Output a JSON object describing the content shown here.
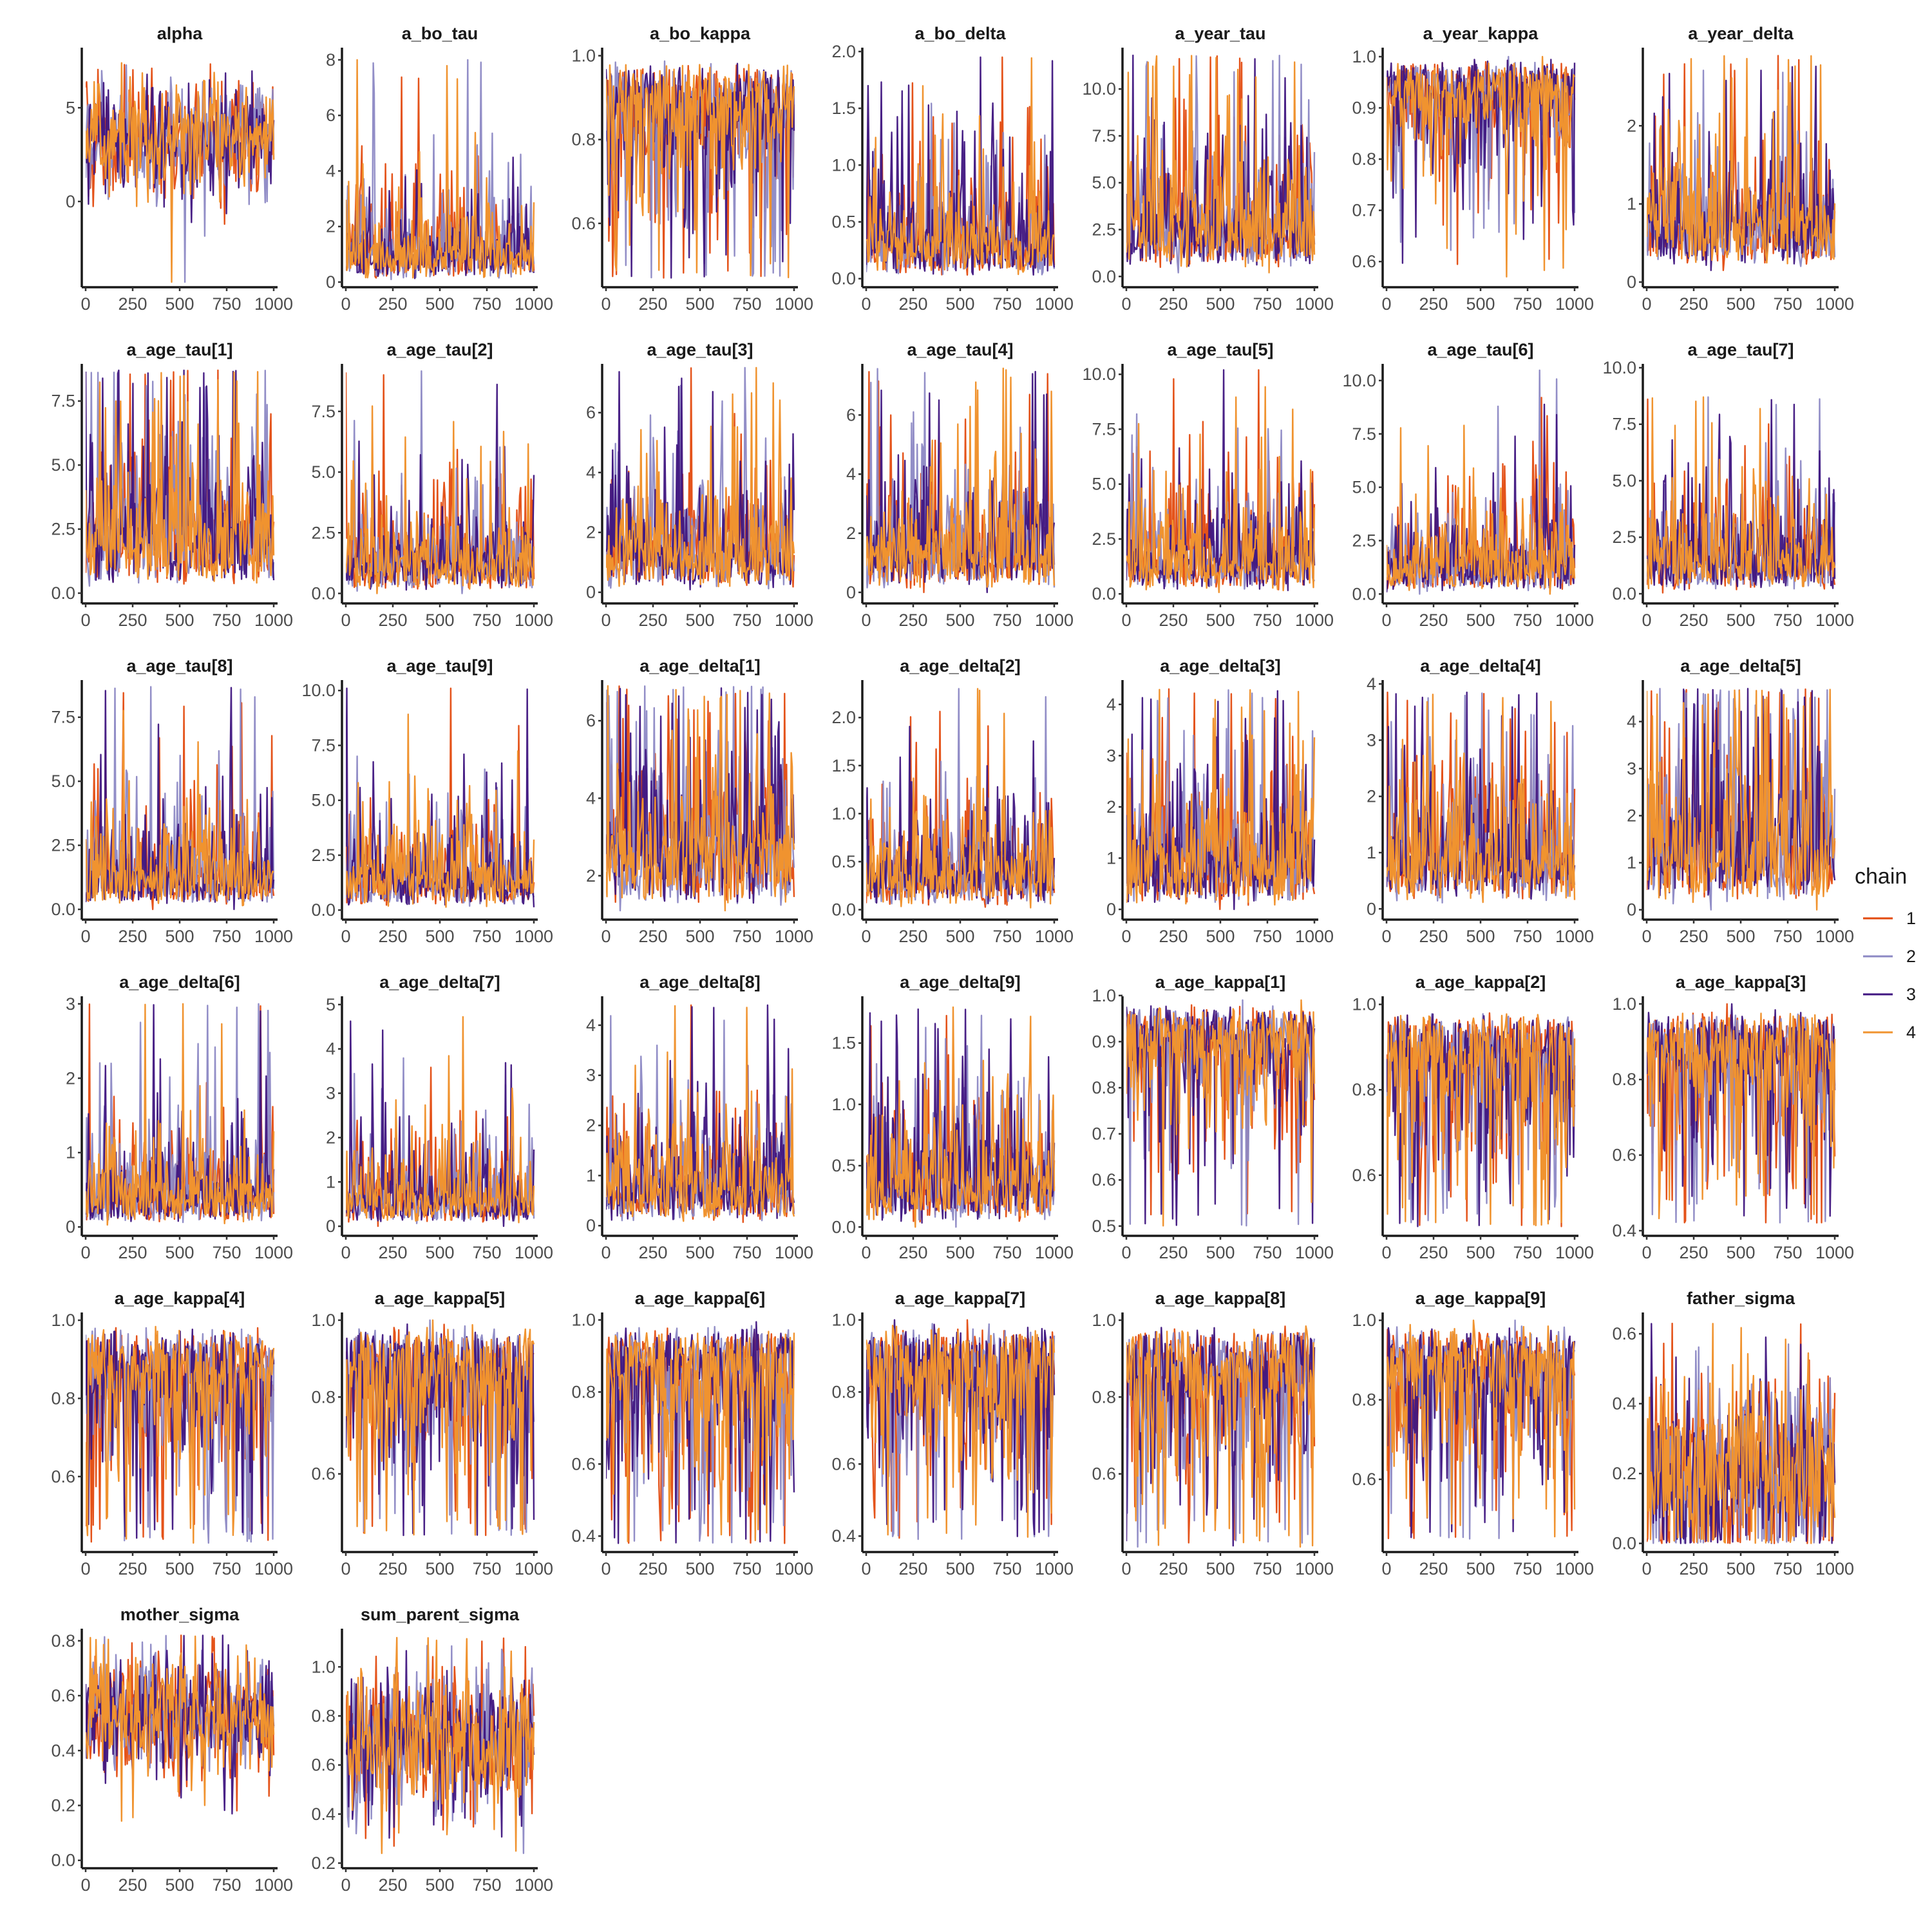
{
  "chart_data": {
    "type": "line",
    "x_ticks": [
      0,
      250,
      500,
      750,
      1000
    ],
    "xlim": [
      0,
      1000
    ],
    "iterations": 1000,
    "grid": false,
    "legend": {
      "title": "chain",
      "placement": "right",
      "items": [
        {
          "label": "1",
          "color": "#E34A0E"
        },
        {
          "label": "2",
          "color": "#8C88C4"
        },
        {
          "label": "3",
          "color": "#3F1580"
        },
        {
          "label": "4",
          "color": "#F0932F"
        }
      ]
    },
    "panels": [
      {
        "title": "alpha",
        "ylim": [
          -4.3,
          8.0
        ],
        "yticks": [
          0,
          5
        ],
        "ytick_labels": [
          "0",
          "5"
        ],
        "range": [
          -4.3,
          8.0
        ],
        "center": 3.2,
        "spread": 1.6,
        "skew": 0.0
      },
      {
        "title": "a_bo_tau",
        "ylim": [
          0,
          8.3
        ],
        "yticks": [
          0,
          2,
          4,
          6,
          8
        ],
        "ytick_labels": [
          "0",
          "2",
          "4",
          "6",
          "8"
        ],
        "range": [
          0.0,
          8.0
        ],
        "center": 1.0,
        "spread": 1.2,
        "skew": 1.0
      },
      {
        "title": "a_bo_kappa",
        "ylim": [
          0.46,
          1.01
        ],
        "yticks": [
          0.6,
          0.8,
          1.0
        ],
        "ytick_labels": [
          "0.6",
          "0.8",
          "1.0"
        ],
        "range": [
          0.47,
          1.0
        ],
        "center": 0.87,
        "spread": 0.08,
        "skew": -1.0
      },
      {
        "title": "a_bo_delta",
        "ylim": [
          -0.03,
          2.0
        ],
        "yticks": [
          0.0,
          0.5,
          1.0,
          1.5,
          2.0
        ],
        "ytick_labels": [
          "0.0",
          "0.5",
          "1.0",
          "1.5",
          "2.0"
        ],
        "range": [
          0.0,
          1.95
        ],
        "center": 0.3,
        "spread": 0.25,
        "skew": 1.0
      },
      {
        "title": "a_year_tau",
        "ylim": [
          -0.3,
          12.0
        ],
        "yticks": [
          0.0,
          2.5,
          5.0,
          7.5,
          10.0
        ],
        "ytick_labels": [
          "0.0",
          "2.5",
          "5.0",
          "7.5",
          "10.0"
        ],
        "range": [
          0.2,
          11.8
        ],
        "center": 2.5,
        "spread": 1.8,
        "skew": 1.0
      },
      {
        "title": "a_year_kappa",
        "ylim": [
          0.56,
          1.01
        ],
        "yticks": [
          0.6,
          0.7,
          0.8,
          0.9,
          1.0
        ],
        "ytick_labels": [
          "0.6",
          "0.7",
          "0.8",
          "0.9",
          "1.0"
        ],
        "range": [
          0.57,
          1.0
        ],
        "center": 0.93,
        "spread": 0.05,
        "skew": -1.0
      },
      {
        "title": "a_year_delta",
        "ylim": [
          0,
          2.95
        ],
        "yticks": [
          0,
          1,
          2
        ],
        "ytick_labels": [
          "0",
          "1",
          "2"
        ],
        "range": [
          0.15,
          2.9
        ],
        "center": 0.7,
        "spread": 0.35,
        "skew": 1.0
      },
      {
        "title": "a_age_tau[1]",
        "ylim": [
          -0.2,
          8.8
        ],
        "yticks": [
          0.0,
          2.5,
          5.0,
          7.5
        ],
        "ytick_labels": [
          "0.0",
          "2.5",
          "5.0",
          "7.5"
        ],
        "range": [
          0.1,
          8.7
        ],
        "center": 2.0,
        "spread": 1.5,
        "skew": 1.0
      },
      {
        "title": "a_age_tau[2]",
        "ylim": [
          -0.2,
          9.3
        ],
        "yticks": [
          0.0,
          2.5,
          5.0,
          7.5
        ],
        "ytick_labels": [
          "0.0",
          "2.5",
          "5.0",
          "7.5"
        ],
        "range": [
          0.0,
          9.2
        ],
        "center": 1.3,
        "spread": 1.3,
        "skew": 1.0
      },
      {
        "title": "a_age_tau[3]",
        "ylim": [
          -0.2,
          7.5
        ],
        "yticks": [
          0,
          2,
          4,
          6
        ],
        "ytick_labels": [
          "0",
          "2",
          "4",
          "6"
        ],
        "range": [
          0.0,
          7.5
        ],
        "center": 1.3,
        "spread": 1.2,
        "skew": 1.0
      },
      {
        "title": "a_age_tau[4]",
        "ylim": [
          -0.2,
          7.6
        ],
        "yticks": [
          0,
          2,
          4,
          6
        ],
        "ytick_labels": [
          "0",
          "2",
          "4",
          "6"
        ],
        "range": [
          0.0,
          7.6
        ],
        "center": 1.4,
        "spread": 1.2,
        "skew": 1.0
      },
      {
        "title": "a_age_tau[5]",
        "ylim": [
          -0.2,
          10.3
        ],
        "yticks": [
          0.0,
          2.5,
          5.0,
          7.5,
          10.0
        ],
        "ytick_labels": [
          "0.0",
          "2.5",
          "5.0",
          "7.5",
          "10.0"
        ],
        "range": [
          0.0,
          10.2
        ],
        "center": 1.5,
        "spread": 1.3,
        "skew": 1.0
      },
      {
        "title": "a_age_tau[6]",
        "ylim": [
          -0.2,
          10.6
        ],
        "yticks": [
          0.0,
          2.5,
          5.0,
          7.5,
          10.0
        ],
        "ytick_labels": [
          "0.0",
          "2.5",
          "5.0",
          "7.5",
          "10.0"
        ],
        "range": [
          0.0,
          10.5
        ],
        "center": 1.3,
        "spread": 1.2,
        "skew": 1.0
      },
      {
        "title": "a_age_tau[7]",
        "ylim": [
          -0.2,
          10.0
        ],
        "yticks": [
          0.0,
          2.5,
          5.0,
          7.5,
          10.0
        ],
        "ytick_labels": [
          "0.0",
          "2.5",
          "5.0",
          "7.5",
          "10.0"
        ],
        "range": [
          0.0,
          8.7
        ],
        "center": 1.4,
        "spread": 1.2,
        "skew": 1.0
      },
      {
        "title": "a_age_tau[8]",
        "ylim": [
          -0.2,
          8.8
        ],
        "yticks": [
          0.0,
          2.5,
          5.0,
          7.5
        ],
        "ytick_labels": [
          "0.0",
          "2.5",
          "5.0",
          "7.5"
        ],
        "range": [
          0.0,
          8.7
        ],
        "center": 1.3,
        "spread": 1.2,
        "skew": 1.0
      },
      {
        "title": "a_age_tau[9]",
        "ylim": [
          -0.2,
          10.3
        ],
        "yticks": [
          0.0,
          2.5,
          5.0,
          7.5,
          10.0
        ],
        "ytick_labels": [
          "0.0",
          "2.5",
          "5.0",
          "7.5",
          "10.0"
        ],
        "range": [
          0.0,
          10.1
        ],
        "center": 1.3,
        "spread": 1.2,
        "skew": 1.0
      },
      {
        "title": "a_age_delta[1]",
        "ylim": [
          1.0,
          6.95
        ],
        "yticks": [
          2,
          4,
          6
        ],
        "ytick_labels": [
          "2",
          "4",
          "6"
        ],
        "range": [
          1.1,
          6.9
        ],
        "center": 2.6,
        "spread": 0.8,
        "skew": 1.0
      },
      {
        "title": "a_age_delta[2]",
        "ylim": [
          -0.05,
          2.35
        ],
        "yticks": [
          0.0,
          0.5,
          1.0,
          1.5,
          2.0
        ],
        "ytick_labels": [
          "0.0",
          "0.5",
          "1.0",
          "1.5",
          "2.0"
        ],
        "range": [
          0.0,
          2.3
        ],
        "center": 0.35,
        "spread": 0.3,
        "skew": 1.0
      },
      {
        "title": "a_age_delta[3]",
        "ylim": [
          -0.1,
          4.4
        ],
        "yticks": [
          0,
          1,
          2,
          3,
          4
        ],
        "ytick_labels": [
          "0",
          "1",
          "2",
          "3",
          "4"
        ],
        "range": [
          0.0,
          4.3
        ],
        "center": 0.9,
        "spread": 0.6,
        "skew": 1.0
      },
      {
        "title": "a_age_delta[4]",
        "ylim": [
          -0.1,
          4.0
        ],
        "yticks": [
          0,
          1,
          2,
          3,
          4
        ],
        "ytick_labels": [
          "0",
          "1",
          "2",
          "3",
          "4"
        ],
        "range": [
          0.0,
          3.85
        ],
        "center": 0.9,
        "spread": 0.6,
        "skew": 1.0
      },
      {
        "title": "a_age_delta[5]",
        "ylim": [
          -0.1,
          4.8
        ],
        "yticks": [
          0,
          1,
          2,
          3,
          4
        ],
        "ytick_labels": [
          "0",
          "1",
          "2",
          "3",
          "4"
        ],
        "range": [
          0.0,
          4.7
        ],
        "center": 1.3,
        "spread": 0.9,
        "skew": 1.0
      },
      {
        "title": "a_age_delta[6]",
        "ylim": [
          -0.05,
          3.05
        ],
        "yticks": [
          0,
          1,
          2,
          3
        ],
        "ytick_labels": [
          "0",
          "1",
          "2",
          "3"
        ],
        "range": [
          0.0,
          3.0
        ],
        "center": 0.4,
        "spread": 0.35,
        "skew": 1.0
      },
      {
        "title": "a_age_delta[7]",
        "ylim": [
          -0.1,
          5.1
        ],
        "yticks": [
          0,
          1,
          2,
          3,
          4,
          5
        ],
        "ytick_labels": [
          "0",
          "1",
          "2",
          "3",
          "4",
          "5"
        ],
        "range": [
          0.0,
          5.0
        ],
        "center": 0.6,
        "spread": 0.6,
        "skew": 1.0
      },
      {
        "title": "a_age_delta[8]",
        "ylim": [
          -0.1,
          4.5
        ],
        "yticks": [
          0,
          1,
          2,
          3,
          4
        ],
        "ytick_labels": [
          "0",
          "1",
          "2",
          "3",
          "4"
        ],
        "range": [
          0.0,
          4.4
        ],
        "center": 0.7,
        "spread": 0.65,
        "skew": 1.0
      },
      {
        "title": "a_age_delta[9]",
        "ylim": [
          -0.03,
          1.85
        ],
        "yticks": [
          0.0,
          0.5,
          1.0,
          1.5
        ],
        "ytick_labels": [
          "0.0",
          "0.5",
          "1.0",
          "1.5"
        ],
        "range": [
          0.0,
          1.8
        ],
        "center": 0.35,
        "spread": 0.25,
        "skew": 1.0
      },
      {
        "title": "a_age_kappa[1]",
        "ylim": [
          0.49,
          0.99
        ],
        "yticks": [
          0.5,
          0.6,
          0.7,
          0.8,
          0.9,
          1.0
        ],
        "ytick_labels": [
          "0.5",
          "0.6",
          "0.7",
          "0.8",
          "0.9",
          "1.0"
        ],
        "range": [
          0.5,
          0.99
        ],
        "center": 0.9,
        "spread": 0.06,
        "skew": -1.0
      },
      {
        "title": "a_age_kappa[2]",
        "ylim": [
          0.47,
          1.01
        ],
        "yticks": [
          0.6,
          0.8,
          1.0
        ],
        "ytick_labels": [
          "0.6",
          "0.8",
          "1.0"
        ],
        "range": [
          0.48,
          1.0
        ],
        "center": 0.87,
        "spread": 0.08,
        "skew": -1.0
      },
      {
        "title": "a_age_kappa[3]",
        "ylim": [
          0.4,
          1.01
        ],
        "yticks": [
          0.4,
          0.6,
          0.8,
          1.0
        ],
        "ytick_labels": [
          "0.4",
          "0.6",
          "0.8",
          "1.0"
        ],
        "range": [
          0.42,
          1.0
        ],
        "center": 0.86,
        "spread": 0.08,
        "skew": -1.0
      },
      {
        "title": "a_age_kappa[4]",
        "ylim": [
          0.42,
          1.01
        ],
        "yticks": [
          0.6,
          0.8,
          1.0
        ],
        "ytick_labels": [
          "0.6",
          "0.8",
          "1.0"
        ],
        "range": [
          0.43,
          1.0
        ],
        "center": 0.86,
        "spread": 0.08,
        "skew": -1.0
      },
      {
        "title": "a_age_kappa[5]",
        "ylim": [
          0.41,
          1.01
        ],
        "yticks": [
          0.6,
          0.8,
          1.0
        ],
        "ytick_labels": [
          "0.6",
          "0.8",
          "1.0"
        ],
        "range": [
          0.44,
          1.0
        ],
        "center": 0.86,
        "spread": 0.08,
        "skew": -1.0
      },
      {
        "title": "a_age_kappa[6]",
        "ylim": [
          0.37,
          1.01
        ],
        "yticks": [
          0.4,
          0.6,
          0.8,
          1.0
        ],
        "ytick_labels": [
          "0.4",
          "0.6",
          "0.8",
          "1.0"
        ],
        "range": [
          0.38,
          1.0
        ],
        "center": 0.85,
        "spread": 0.09,
        "skew": -1.0
      },
      {
        "title": "a_age_kappa[7]",
        "ylim": [
          0.37,
          1.01
        ],
        "yticks": [
          0.4,
          0.6,
          0.8,
          1.0
        ],
        "ytick_labels": [
          "0.4",
          "0.6",
          "0.8",
          "1.0"
        ],
        "range": [
          0.39,
          1.0
        ],
        "center": 0.85,
        "spread": 0.09,
        "skew": -1.0
      },
      {
        "title": "a_age_kappa[8]",
        "ylim": [
          0.41,
          1.01
        ],
        "yticks": [
          0.6,
          0.8,
          1.0
        ],
        "ytick_labels": [
          "0.6",
          "0.8",
          "1.0"
        ],
        "range": [
          0.41,
          1.0
        ],
        "center": 0.86,
        "spread": 0.08,
        "skew": -1.0
      },
      {
        "title": "a_age_kappa[9]",
        "ylim": [
          0.43,
          1.01
        ],
        "yticks": [
          0.6,
          0.8,
          1.0
        ],
        "ytick_labels": [
          "0.6",
          "0.8",
          "1.0"
        ],
        "range": [
          0.45,
          1.0
        ],
        "center": 0.87,
        "spread": 0.08,
        "skew": -1.0
      },
      {
        "title": "father_sigma",
        "ylim": [
          -0.01,
          0.65
        ],
        "yticks": [
          0.0,
          0.2,
          0.4,
          0.6
        ],
        "ytick_labels": [
          "0.0",
          "0.2",
          "0.4",
          "0.6"
        ],
        "range": [
          0.0,
          0.63
        ],
        "center": 0.2,
        "spread": 0.15,
        "skew": 0.0
      },
      {
        "title": "mother_sigma",
        "ylim": [
          -0.01,
          0.83
        ],
        "yticks": [
          0.0,
          0.2,
          0.4,
          0.6,
          0.8
        ],
        "ytick_labels": [
          "0.0",
          "0.2",
          "0.4",
          "0.6",
          "0.8"
        ],
        "range": [
          0.02,
          0.82
        ],
        "center": 0.53,
        "spread": 0.12,
        "skew": 0.0
      },
      {
        "title": "sum_parent_sigma",
        "ylim": [
          0.2,
          1.14
        ],
        "yticks": [
          0.2,
          0.4,
          0.6,
          0.8,
          1.0
        ],
        "ytick_labels": [
          "0.2",
          "0.4",
          "0.6",
          "0.8",
          "1.0"
        ],
        "range": [
          0.24,
          1.12
        ],
        "center": 0.7,
        "spread": 0.15,
        "skew": 0.0
      }
    ]
  }
}
